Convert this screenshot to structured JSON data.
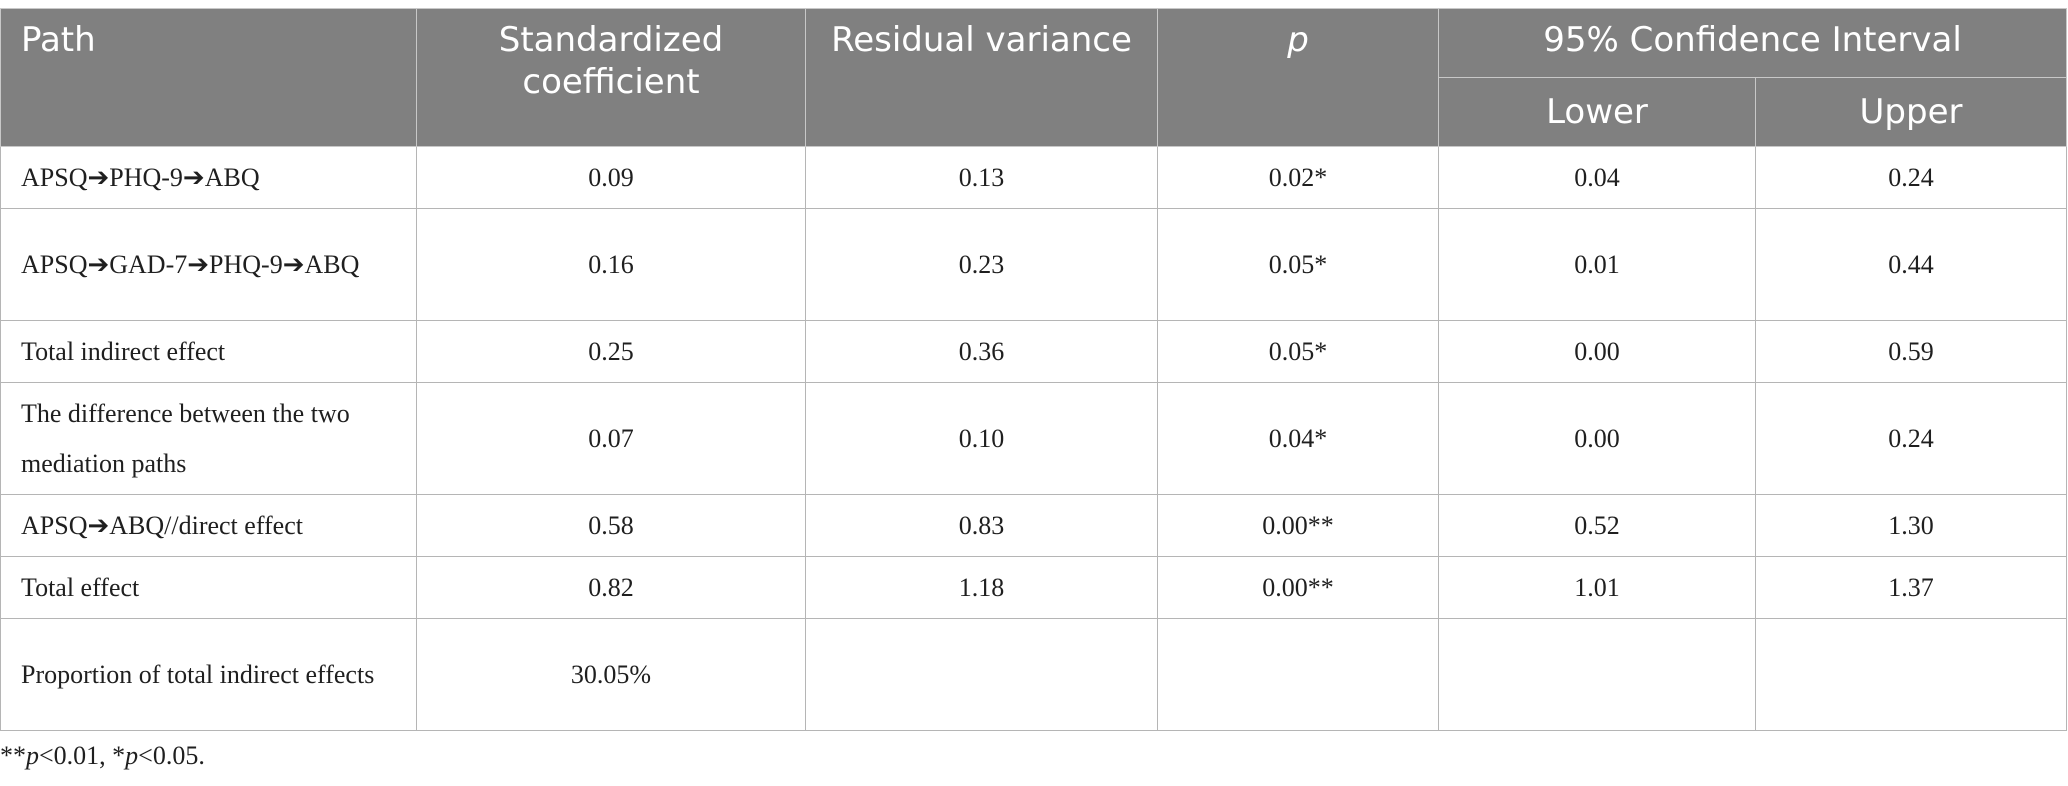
{
  "table": {
    "headers": {
      "path": "Path",
      "standardized_coefficient": "Standardized coefficient",
      "residual_variance": "Residual variance",
      "p": "p",
      "confidence_interval": "95% Confidence Interval",
      "lower": "Lower",
      "upper": "Upper"
    },
    "rows": [
      {
        "path": "APSQ➔PHQ-9➔ABQ",
        "coefficient": "0.09",
        "residual_variance": "0.13",
        "p": "0.02*",
        "lower": "0.04",
        "upper": "0.24"
      },
      {
        "path": "APSQ➔GAD-7➔PHQ-9➔ABQ",
        "coefficient": "0.16",
        "residual_variance": "0.23",
        "p": "0.05*",
        "lower": "0.01",
        "upper": "0.44"
      },
      {
        "path": "Total indirect effect",
        "coefficient": "0.25",
        "residual_variance": "0.36",
        "p": "0.05*",
        "lower": "0.00",
        "upper": "0.59"
      },
      {
        "path": "The difference between the two mediation paths",
        "coefficient": "0.07",
        "residual_variance": "0.10",
        "p": "0.04*",
        "lower": "0.00",
        "upper": "0.24"
      },
      {
        "path": "APSQ➔ABQ//direct effect",
        "coefficient": "0.58",
        "residual_variance": "0.83",
        "p": "0.00**",
        "lower": "0.52",
        "upper": "1.30"
      },
      {
        "path": "Total effect",
        "coefficient": "0.82",
        "residual_variance": "1.18",
        "p": "0.00**",
        "lower": "1.01",
        "upper": "1.37"
      },
      {
        "path": "Proportion of total indirect effects",
        "coefficient": "30.05%",
        "residual_variance": "",
        "p": "",
        "lower": "",
        "upper": ""
      }
    ]
  },
  "footnote": {
    "stars_1": "**",
    "p_1": "p",
    "threshold_1": "<0.01, ",
    "stars_2": "*",
    "p_2": "p",
    "threshold_2": "<0.05."
  }
}
